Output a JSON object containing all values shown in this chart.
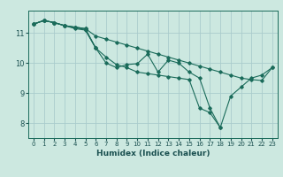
{
  "title": "",
  "xlabel": "Humidex (Indice chaleur)",
  "bg_color": "#cce8e0",
  "grid_color": "#aacccc",
  "line_color": "#1a6b5a",
  "xlim": [
    -0.5,
    23.5
  ],
  "ylim": [
    7.5,
    11.75
  ],
  "yticks": [
    8,
    9,
    10,
    11
  ],
  "xticks": [
    0,
    1,
    2,
    3,
    4,
    5,
    6,
    7,
    8,
    9,
    10,
    11,
    12,
    13,
    14,
    15,
    16,
    17,
    18,
    19,
    20,
    21,
    22,
    23
  ],
  "series": [
    {
      "x": [
        0,
        1,
        2,
        3,
        4,
        5,
        6,
        7,
        8,
        9,
        10,
        11,
        12,
        13,
        14,
        15,
        16,
        17,
        18,
        19,
        20,
        21,
        22,
        23
      ],
      "y": [
        11.3,
        11.42,
        11.35,
        11.25,
        11.15,
        11.1,
        10.5,
        10.0,
        9.85,
        9.95,
        9.98,
        10.3,
        9.7,
        10.1,
        10.0,
        9.7,
        9.5,
        8.5,
        7.85,
        8.9,
        9.2,
        9.5,
        9.6,
        9.85
      ]
    },
    {
      "x": [
        0,
        1,
        2,
        3,
        4,
        5,
        6,
        7,
        8,
        9,
        10,
        11,
        12,
        13,
        14,
        15,
        16,
        17,
        18,
        19,
        20,
        21,
        22,
        23
      ],
      "y": [
        11.3,
        11.42,
        11.35,
        11.25,
        11.2,
        11.15,
        10.9,
        10.8,
        10.7,
        10.6,
        10.5,
        10.4,
        10.3,
        10.2,
        10.1,
        10.0,
        9.9,
        9.8,
        9.7,
        9.6,
        9.5,
        9.45,
        9.42,
        9.85
      ]
    },
    {
      "x": [
        0,
        1,
        2,
        3,
        4,
        5,
        6
      ],
      "y": [
        11.3,
        11.42,
        11.35,
        11.25,
        11.2,
        11.15,
        10.5
      ]
    },
    {
      "x": [
        0,
        1,
        2,
        3,
        4,
        5,
        6,
        7,
        8,
        9,
        10,
        11,
        12,
        13,
        14,
        15,
        16,
        17,
        18
      ],
      "y": [
        11.3,
        11.42,
        11.35,
        11.25,
        11.18,
        11.12,
        10.5,
        10.2,
        9.95,
        9.85,
        9.7,
        9.65,
        9.6,
        9.55,
        9.5,
        9.45,
        8.5,
        8.35,
        7.85
      ]
    }
  ]
}
